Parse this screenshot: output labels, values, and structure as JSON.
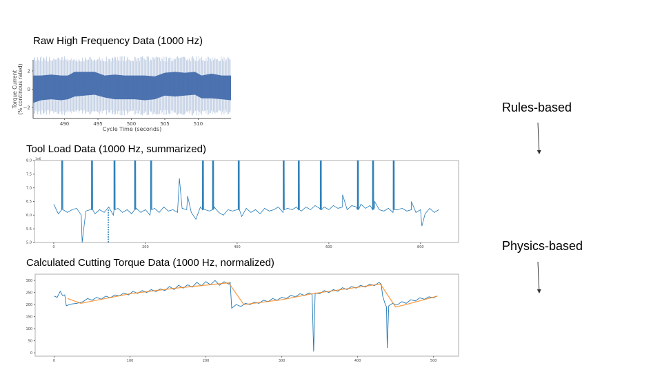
{
  "slide": {
    "titles": {
      "raw": "Raw High Frequency Data (1000 Hz)",
      "tool_load": "Tool Load Data (1000 Hz, summarized)",
      "cutting": "Calculated Cutting Torque Data (1000 Hz, normalized)"
    },
    "labels": {
      "rules": "Rules-based",
      "physics": "Physics-based"
    }
  },
  "chart_data": [
    {
      "type": "area",
      "id": "raw",
      "xlabel": "Cycle Time (seconds)",
      "ylabel": "Torque Current\n(% continous rated)",
      "ylabel_lines": [
        "Torque Current",
        "(% continous rated)"
      ],
      "xlim": [
        485.3,
        514.9
      ],
      "ylim": [
        -3.2,
        3.2
      ],
      "xticks": [
        490,
        495,
        500,
        505,
        510
      ],
      "yticks": [
        -2,
        0,
        2
      ],
      "color": "#4c72b0",
      "envelope": {
        "x": [
          485.3,
          486.5,
          488,
          489.5,
          490.5,
          491.5,
          493,
          494.5,
          496,
          497.5,
          499,
          500.5,
          502,
          503.5,
          505,
          506.5,
          508,
          509.5,
          510.5,
          512,
          513.5,
          514.9
        ],
        "upper": [
          1.5,
          1.5,
          1.6,
          1.5,
          1.5,
          1.9,
          1.9,
          1.9,
          1.5,
          1.6,
          1.5,
          1.5,
          1.5,
          1.4,
          1.8,
          1.9,
          1.8,
          1.9,
          1.5,
          1.7,
          1.5,
          1.5
        ],
        "lower": [
          -1.5,
          -1.2,
          -1.1,
          -1.2,
          -1.1,
          -0.8,
          -0.7,
          -0.6,
          -0.9,
          -1.1,
          -1.1,
          -1.1,
          -1.2,
          -1.1,
          -0.7,
          -0.8,
          -0.7,
          -0.6,
          -1.0,
          -1.0,
          -1.1,
          -1.2
        ]
      }
    },
    {
      "type": "line",
      "id": "tool_load",
      "xlim": [
        -42,
        883
      ],
      "ylim": [
        5.0,
        8.0
      ],
      "xticks": [
        0,
        200,
        400,
        600,
        800
      ],
      "yticks": [
        5.0,
        5.5,
        6.0,
        6.5,
        7.0,
        7.5,
        8.0
      ],
      "ytick_labels": [
        "5.0",
        "5.5",
        "6.0",
        "6.5",
        "7.0",
        "7.5",
        "8.0"
      ],
      "offset_label": "1e6",
      "color": "#1f77b4",
      "x_start": 0,
      "x_step": 10,
      "values": [
        6.4,
        6.05,
        6.3,
        6.1,
        6.2,
        6.25,
        6.0,
        6.15,
        6.2,
        6.05,
        6.2,
        6.1,
        6.3,
        6.0,
        6.25,
        6.1,
        6.2,
        6.05,
        6.25,
        6.1,
        6.2,
        6.0,
        6.25,
        6.1,
        6.3,
        6.15,
        6.2,
        6.1,
        6.25,
        6.2,
        6.1,
        5.85,
        6.3,
        6.2,
        6.15,
        6.3,
        6.1,
        6.0,
        6.2,
        6.15,
        6.2,
        5.95,
        6.25,
        6.1,
        6.2,
        6.05,
        6.25,
        6.15,
        6.2,
        6.3,
        6.1,
        6.25,
        6.2,
        6.3,
        6.15,
        6.3,
        6.2,
        6.35,
        6.25,
        6.3,
        6.2,
        6.35,
        6.25,
        6.3,
        6.2,
        6.35,
        6.3,
        6.4,
        6.25,
        6.35,
        6.3,
        6.2,
        6.15,
        6.25,
        6.1,
        6.2,
        6.25,
        6.15,
        6.2,
        6.1,
        6.2,
        6.05,
        6.25,
        6.1,
        6.2
      ],
      "peaks": [
        {
          "x": 274,
          "y": 7.35
        },
        {
          "x": 292,
          "y": 6.7
        },
        {
          "x": 630,
          "y": 6.75
        },
        {
          "x": 700,
          "y": 6.5
        },
        {
          "x": 780,
          "y": 6.5
        },
        {
          "x": 62,
          "y": 5.0
        },
        {
          "x": 803,
          "y": 5.6
        }
      ],
      "spikes_up": [
        18,
        83,
        132,
        177,
        212,
        325,
        347,
        403,
        501,
        534,
        582,
        663,
        696,
        741
      ],
      "spikes_down_dashed": [
        119
      ]
    },
    {
      "type": "line",
      "id": "cutting",
      "xlim": [
        -25,
        533
      ],
      "ylim": [
        -14,
        326
      ],
      "xticks": [
        0,
        100,
        200,
        300,
        400,
        500
      ],
      "yticks": [
        0,
        50,
        100,
        150,
        200,
        250,
        300
      ],
      "series": [
        {
          "color": "#1f77b4",
          "points": [
            [
              0,
              235
            ],
            [
              4,
              230
            ],
            [
              8,
              255
            ],
            [
              11,
              238
            ],
            [
              14,
              240
            ],
            [
              16,
              195
            ],
            [
              22,
              202
            ],
            [
              30,
              205
            ],
            [
              38,
              212
            ],
            [
              44,
              225
            ],
            [
              50,
              218
            ],
            [
              56,
              230
            ],
            [
              62,
              222
            ],
            [
              68,
              235
            ],
            [
              74,
              228
            ],
            [
              80,
              240
            ],
            [
              86,
              236
            ],
            [
              92,
              248
            ],
            [
              98,
              240
            ],
            [
              104,
              255
            ],
            [
              110,
              246
            ],
            [
              116,
              258
            ],
            [
              122,
              250
            ],
            [
              128,
              262
            ],
            [
              134,
              254
            ],
            [
              140,
              265
            ],
            [
              146,
              258
            ],
            [
              152,
              275
            ],
            [
              158,
              262
            ],
            [
              164,
              280
            ],
            [
              170,
              268
            ],
            [
              176,
              282
            ],
            [
              182,
              272
            ],
            [
              188,
              292
            ],
            [
              194,
              278
            ],
            [
              200,
              295
            ],
            [
              206,
              282
            ],
            [
              212,
              300
            ],
            [
              218,
              280
            ],
            [
              224,
              295
            ],
            [
              230,
              285
            ],
            [
              232,
              292
            ],
            [
              234,
              185
            ],
            [
              240,
              200
            ],
            [
              246,
              192
            ],
            [
              252,
              205
            ],
            [
              258,
              200
            ],
            [
              264,
              210
            ],
            [
              270,
              205
            ],
            [
              276,
              218
            ],
            [
              282,
              212
            ],
            [
              288,
              225
            ],
            [
              294,
              218
            ],
            [
              300,
              230
            ],
            [
              306,
              225
            ],
            [
              312,
              238
            ],
            [
              318,
              232
            ],
            [
              324,
              245
            ],
            [
              330,
              238
            ],
            [
              336,
              248
            ],
            [
              340,
              242
            ],
            [
              342,
              5
            ],
            [
              344,
              248
            ],
            [
              350,
              245
            ],
            [
              356,
              258
            ],
            [
              362,
              250
            ],
            [
              368,
              262
            ],
            [
              374,
              255
            ],
            [
              380,
              270
            ],
            [
              386,
              262
            ],
            [
              392,
              275
            ],
            [
              398,
              268
            ],
            [
              404,
              280
            ],
            [
              410,
              272
            ],
            [
              416,
              285
            ],
            [
              422,
              278
            ],
            [
              428,
              292
            ],
            [
              431,
              285
            ],
            [
              433,
              235
            ],
            [
              436,
              205
            ],
            [
              438,
              190
            ],
            [
              439,
              20
            ],
            [
              441,
              195
            ],
            [
              446,
              205
            ],
            [
              452,
              198
            ],
            [
              458,
              212
            ],
            [
              464,
              205
            ],
            [
              470,
              220
            ],
            [
              476,
              215
            ],
            [
              482,
              228
            ],
            [
              488,
              222
            ],
            [
              494,
              232
            ],
            [
              500,
              228
            ],
            [
              505,
              236
            ]
          ]
        },
        {
          "color": "#ff7f0e",
          "points": [
            [
              18,
              225
            ],
            [
              35,
              205
            ],
            [
              100,
              245
            ],
            [
              160,
              268
            ],
            [
              230,
              290
            ],
            [
              250,
              200
            ],
            [
              300,
              220
            ],
            [
              340,
              245
            ],
            [
              430,
              285
            ],
            [
              450,
              190
            ],
            [
              460,
              197
            ],
            [
              505,
              235
            ]
          ]
        }
      ]
    }
  ]
}
